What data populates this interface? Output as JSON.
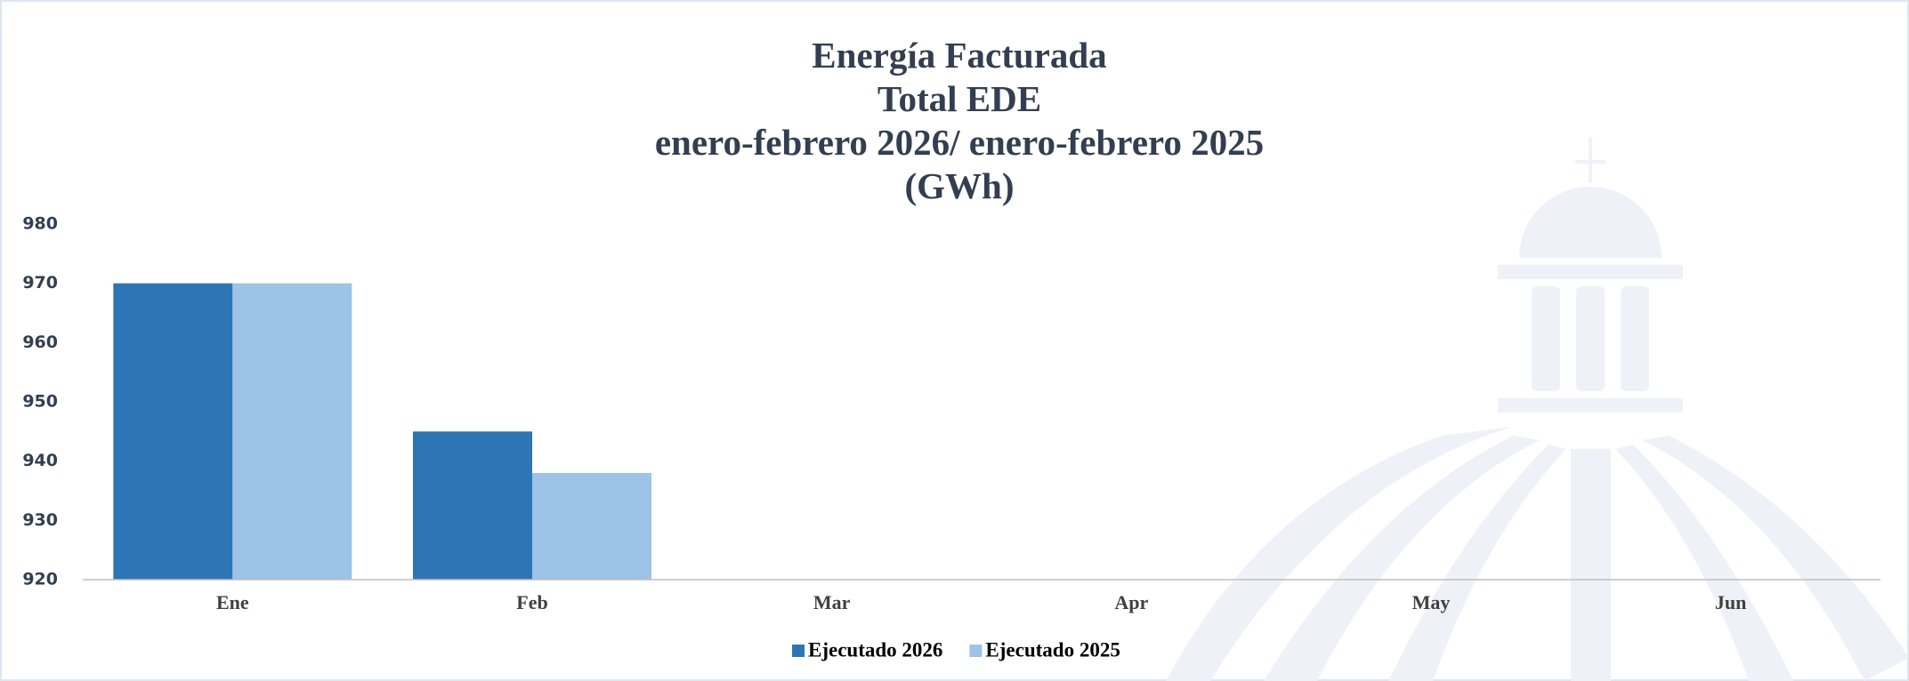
{
  "chart_data": {
    "type": "bar",
    "title": [
      "Energía Facturada",
      "Total EDE",
      "enero-febrero 2026/ enero-febrero 2025",
      "(GWh)"
    ],
    "categories": [
      "Ene",
      "Feb",
      "Mar",
      "Apr",
      "May",
      "Jun"
    ],
    "series": [
      {
        "name": "Ejecutado 2026",
        "color": "#2e75b6",
        "values": [
          970,
          945,
          null,
          null,
          null,
          null
        ]
      },
      {
        "name": "Ejecutado 2025",
        "color": "#9dc3e6",
        "values": [
          970,
          938,
          null,
          null,
          null,
          null
        ]
      }
    ],
    "ylim": [
      920,
      980
    ],
    "yticks": [
      920,
      930,
      940,
      950,
      960,
      970,
      980
    ],
    "grid": false,
    "legend": "bottom"
  }
}
